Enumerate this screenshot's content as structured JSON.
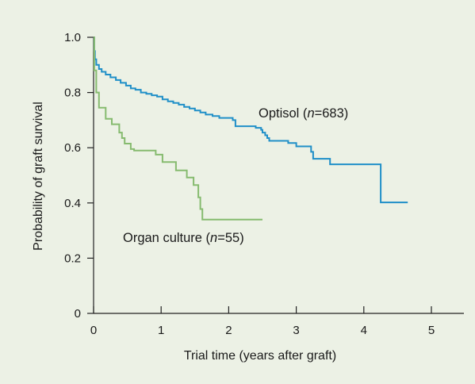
{
  "chart_data": {
    "type": "line",
    "title": "",
    "xlabel": "Trial time (years after graft)",
    "ylabel": "Probability of graft survival",
    "xlim": [
      0,
      5.5
    ],
    "ylim": [
      0,
      1.0
    ],
    "x_ticks": [
      0,
      1,
      2,
      3,
      4,
      5
    ],
    "x_tick_labels": [
      "0",
      "1",
      "2",
      "3",
      "4",
      "5"
    ],
    "y_ticks": [
      0,
      0.2,
      0.4,
      0.6,
      0.8,
      1.0
    ],
    "y_tick_labels": [
      "0",
      "0.2",
      "0.4",
      "0.6",
      "0.8",
      "1.0"
    ],
    "grid": false,
    "legend": "none (inline series labels)",
    "series": [
      {
        "name": "Optisol",
        "label_prefix": "Optisol (",
        "label_n": "n",
        "label_suffix": "=683)",
        "color": "#1f8fc8",
        "step": true,
        "points": [
          [
            0,
            1.0
          ],
          [
            0.01,
            0.95
          ],
          [
            0.02,
            0.92
          ],
          [
            0.04,
            0.9
          ],
          [
            0.08,
            0.885
          ],
          [
            0.12,
            0.875
          ],
          [
            0.18,
            0.865
          ],
          [
            0.25,
            0.855
          ],
          [
            0.33,
            0.845
          ],
          [
            0.4,
            0.835
          ],
          [
            0.48,
            0.825
          ],
          [
            0.55,
            0.815
          ],
          [
            0.62,
            0.81
          ],
          [
            0.7,
            0.8
          ],
          [
            0.78,
            0.795
          ],
          [
            0.86,
            0.79
          ],
          [
            0.94,
            0.785
          ],
          [
            1.02,
            0.775
          ],
          [
            1.1,
            0.768
          ],
          [
            1.18,
            0.762
          ],
          [
            1.26,
            0.756
          ],
          [
            1.34,
            0.748
          ],
          [
            1.42,
            0.742
          ],
          [
            1.5,
            0.735
          ],
          [
            1.58,
            0.728
          ],
          [
            1.66,
            0.72
          ],
          [
            1.76,
            0.715
          ],
          [
            1.86,
            0.708
          ],
          [
            2.06,
            0.7
          ],
          [
            2.1,
            0.678
          ],
          [
            2.4,
            0.672
          ],
          [
            2.48,
            0.665
          ],
          [
            2.5,
            0.655
          ],
          [
            2.54,
            0.645
          ],
          [
            2.57,
            0.635
          ],
          [
            2.6,
            0.625
          ],
          [
            2.88,
            0.617
          ],
          [
            3.0,
            0.605
          ],
          [
            3.22,
            0.585
          ],
          [
            3.25,
            0.56
          ],
          [
            3.5,
            0.54
          ],
          [
            4.25,
            0.402
          ],
          [
            4.65,
            0.402
          ]
        ]
      },
      {
        "name": "Organ culture",
        "label_prefix": "Organ culture (",
        "label_n": "n",
        "label_suffix": "=55)",
        "color": "#86bb6f",
        "step": true,
        "points": [
          [
            0,
            1.0
          ],
          [
            0.01,
            0.88
          ],
          [
            0.04,
            0.8
          ],
          [
            0.08,
            0.745
          ],
          [
            0.18,
            0.705
          ],
          [
            0.27,
            0.685
          ],
          [
            0.38,
            0.655
          ],
          [
            0.42,
            0.635
          ],
          [
            0.46,
            0.615
          ],
          [
            0.55,
            0.595
          ],
          [
            0.6,
            0.59
          ],
          [
            0.92,
            0.575
          ],
          [
            1.02,
            0.548
          ],
          [
            1.22,
            0.518
          ],
          [
            1.38,
            0.492
          ],
          [
            1.48,
            0.465
          ],
          [
            1.55,
            0.42
          ],
          [
            1.58,
            0.378
          ],
          [
            1.61,
            0.34
          ],
          [
            2.5,
            0.34
          ]
        ]
      }
    ]
  }
}
